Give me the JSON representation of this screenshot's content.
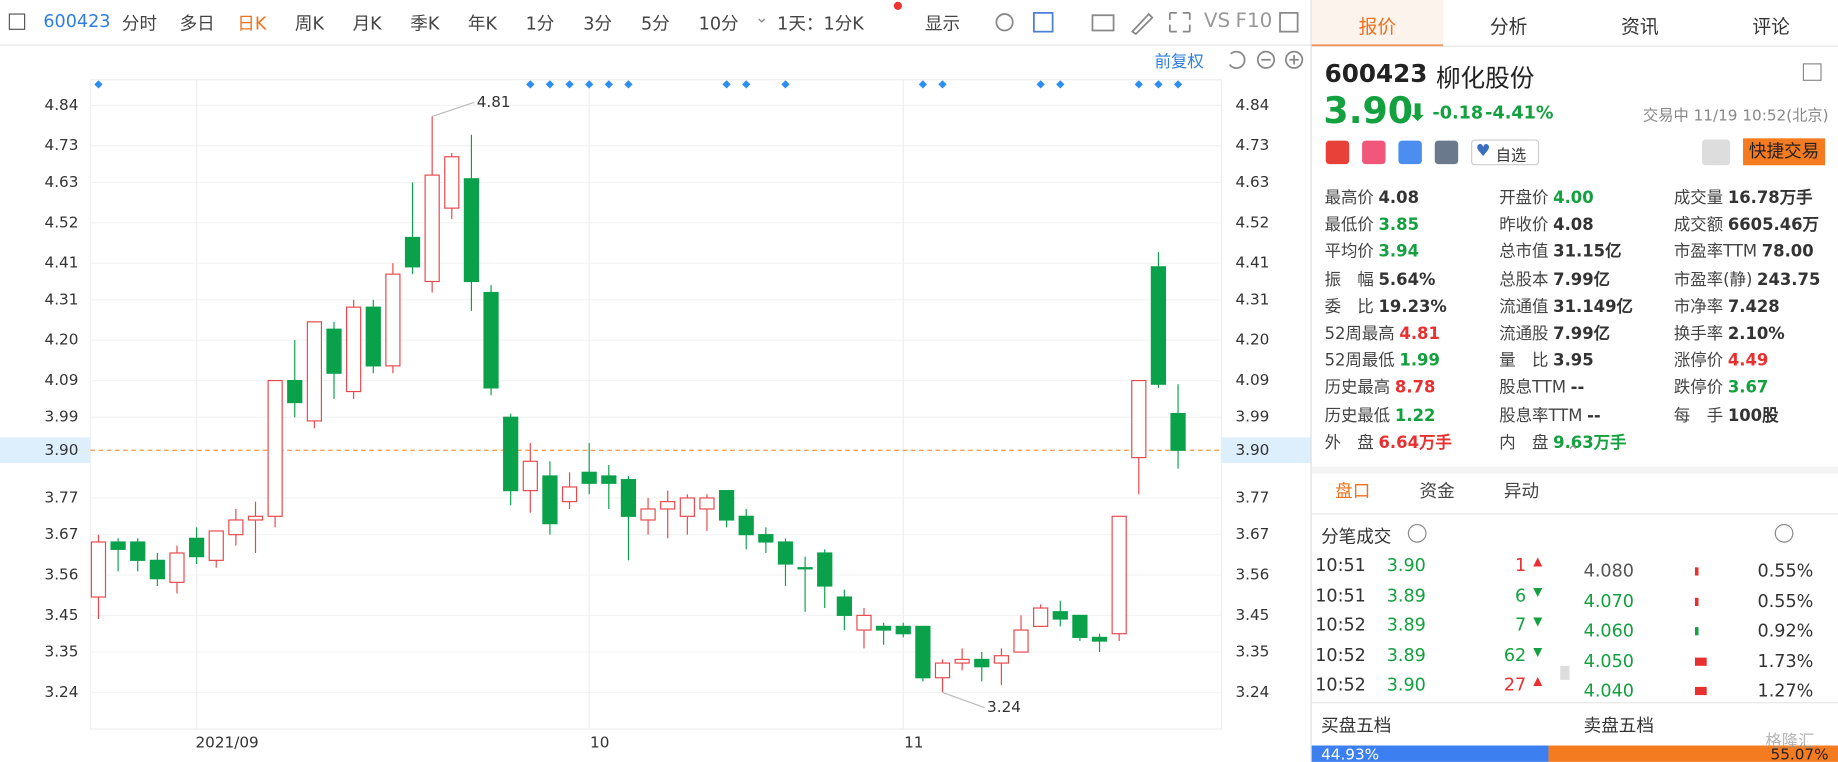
{
  "toolbar": {
    "code": "600423",
    "tabs": [
      "分时",
      "多日",
      "日K",
      "周K",
      "月K",
      "季K",
      "年K",
      "1分",
      "3分",
      "5分",
      "10分"
    ],
    "active_tab": 2,
    "period": "1天：1分K",
    "display": "显示",
    "vs": "VS",
    "f10": "F10"
  },
  "chart": {
    "type": "candlestick",
    "adjust": "前复权",
    "categories": [
      null,
      null,
      null,
      null,
      null,
      "2021/09",
      null,
      null,
      null,
      null,
      null,
      null,
      null,
      null,
      null,
      null,
      null,
      null,
      null,
      null,
      null,
      null,
      null,
      null,
      null,
      "10",
      null,
      null,
      null,
      null,
      null,
      null,
      null,
      null,
      null,
      null,
      null,
      null,
      null,
      null,
      null,
      "11",
      null,
      null,
      null,
      null,
      null,
      null,
      null,
      null,
      null,
      null,
      null,
      null,
      null,
      null
    ],
    "open": [
      3.5,
      3.65,
      3.65,
      3.6,
      3.54,
      3.66,
      3.6,
      3.67,
      3.71,
      3.72,
      4.09,
      3.98,
      4.23,
      4.06,
      4.29,
      4.13,
      4.48,
      4.36,
      4.56,
      4.64,
      4.33,
      3.99,
      3.79,
      3.83,
      3.76,
      3.84,
      3.83,
      3.82,
      3.71,
      3.74,
      3.72,
      3.74,
      3.79,
      3.72,
      3.67,
      3.65,
      3.58,
      3.62,
      3.5,
      3.41,
      3.42,
      3.42,
      3.42,
      3.28,
      3.32,
      3.33,
      3.32,
      3.35,
      3.42,
      3.46,
      3.45,
      3.39,
      3.4,
      3.88,
      4.4,
      4.0
    ],
    "high": [
      3.67,
      3.66,
      3.66,
      3.62,
      3.64,
      3.69,
      3.68,
      3.74,
      3.76,
      4.09,
      4.2,
      4.25,
      4.25,
      4.31,
      4.31,
      4.41,
      4.63,
      4.81,
      4.71,
      4.76,
      4.35,
      4.0,
      3.92,
      3.87,
      3.84,
      3.92,
      3.86,
      3.83,
      3.77,
      3.79,
      3.78,
      3.78,
      3.79,
      3.74,
      3.69,
      3.66,
      3.61,
      3.63,
      3.52,
      3.47,
      3.43,
      3.43,
      3.42,
      3.33,
      3.36,
      3.35,
      3.36,
      3.45,
      3.48,
      3.49,
      3.45,
      3.4,
      3.72,
      4.09,
      4.44,
      4.08
    ],
    "low": [
      3.44,
      3.57,
      3.57,
      3.53,
      3.51,
      3.59,
      3.58,
      3.64,
      3.62,
      3.69,
      3.99,
      3.96,
      4.04,
      4.04,
      4.11,
      4.11,
      4.38,
      4.33,
      4.53,
      4.28,
      4.05,
      3.75,
      3.73,
      3.67,
      3.74,
      3.78,
      3.74,
      3.6,
      3.67,
      3.66,
      3.67,
      3.68,
      3.69,
      3.63,
      3.62,
      3.53,
      3.46,
      3.47,
      3.41,
      3.36,
      3.37,
      3.39,
      3.27,
      3.24,
      3.3,
      3.27,
      3.26,
      3.35,
      3.42,
      3.42,
      3.38,
      3.35,
      3.38,
      3.78,
      4.07,
      3.85
    ],
    "close": [
      3.65,
      3.63,
      3.6,
      3.55,
      3.62,
      3.61,
      3.68,
      3.71,
      3.72,
      4.09,
      4.03,
      4.25,
      4.11,
      4.29,
      4.13,
      4.38,
      4.4,
      4.65,
      4.7,
      4.36,
      4.07,
      3.79,
      3.87,
      3.7,
      3.8,
      3.81,
      3.81,
      3.72,
      3.74,
      3.76,
      3.77,
      3.77,
      3.71,
      3.67,
      3.65,
      3.59,
      3.58,
      3.53,
      3.45,
      3.45,
      3.41,
      3.4,
      3.28,
      3.32,
      3.33,
      3.31,
      3.34,
      3.41,
      3.47,
      3.44,
      3.39,
      3.38,
      3.72,
      4.09,
      4.08,
      3.9
    ],
    "ylim": [
      3.14,
      4.91
    ],
    "yticks": [
      4.84,
      4.73,
      4.63,
      4.52,
      4.41,
      4.31,
      {
        "value": 4.2,
        "label": "4.20"
      },
      4.09,
      3.99,
      3.77,
      3.67,
      3.56,
      3.45,
      3.35,
      3.24
    ],
    "last_price": {
      "value": 3.9,
      "label": "3.90"
    },
    "peak_label": "4.81",
    "low_label": "3.24",
    "up_color": "#e8474a",
    "down_color": "#0aa14b",
    "grid": true
  },
  "panel": {
    "tabs": [
      "报价",
      "分析",
      "资讯",
      "评论"
    ],
    "active_tab": 0,
    "code": "600423",
    "name": "柳化股份",
    "price": "3.90",
    "change": "-0.18",
    "change_pct": "-4.41%",
    "status": "交易中 11/19 10:52(北京)",
    "watch": "自选",
    "trade": "快捷交易",
    "stats": [
      [
        {
          "label": "最高价",
          "value": "4.08"
        },
        {
          "label": "最低价",
          "value": "3.85",
          "color": "#13a03e"
        },
        {
          "label": "平均价",
          "value": "3.94",
          "color": "#13a03e"
        },
        {
          "label": "振　幅",
          "value": "5.64%"
        },
        {
          "label": "委　比",
          "value": "19.23%"
        },
        {
          "label": "52周最高",
          "value": "4.81",
          "color": "#e93030"
        },
        {
          "label": "52周最低",
          "value": "1.99",
          "color": "#13a03e"
        },
        {
          "label": "历史最高",
          "value": "8.78",
          "color": "#e93030"
        },
        {
          "label": "历史最低",
          "value": "1.22",
          "color": "#13a03e"
        },
        {
          "label": "外　盘",
          "value": "6.64万手",
          "color": "#e93030"
        }
      ],
      [
        {
          "label": "开盘价",
          "value": "4.00",
          "color": "#13a03e"
        },
        {
          "label": "昨收价",
          "value": "4.08"
        },
        {
          "label": "总市值",
          "value": "31.15亿"
        },
        {
          "label": "总股本",
          "value": "7.99亿"
        },
        {
          "label": "流通值",
          "value": "31.149亿"
        },
        {
          "label": "流通股",
          "value": "7.99亿"
        },
        {
          "label": "量　比",
          "value": "3.95"
        },
        {
          "label": "股息TTM",
          "value": "--"
        },
        {
          "label": "股息率TTM",
          "value": "--"
        },
        {
          "label": "内　盘",
          "value": "9.63万手",
          "color": "#13a03e"
        }
      ],
      [
        {
          "label": "成交量",
          "value": "16.78万手"
        },
        {
          "label": "成交额",
          "value": "6605.46万"
        },
        {
          "label": "市盈率TTM",
          "value": "78.00"
        },
        {
          "label": "市盈率(静)",
          "value": "243.75"
        },
        {
          "label": "市净率",
          "value": "7.428"
        },
        {
          "label": "换手率",
          "value": "2.10%"
        },
        {
          "label": "涨停价",
          "value": "4.49",
          "color": "#e93030"
        },
        {
          "label": "跌停价",
          "value": "3.67",
          "color": "#13a03e"
        },
        {
          "label": "每　手",
          "value": "100股"
        }
      ]
    ],
    "sub_tabs": [
      "盘口",
      "资金",
      "异动"
    ],
    "sub_active": 0,
    "ticks_title": "分笔成交",
    "trades": [
      {
        "time": "10:51",
        "price": "3.90",
        "volume": 1,
        "dir": "up"
      },
      {
        "time": "10:51",
        "price": "3.89",
        "volume": 6,
        "dir": "down"
      },
      {
        "time": "10:52",
        "price": "3.89",
        "volume": 7,
        "dir": "down"
      },
      {
        "time": "10:52",
        "price": "3.89",
        "volume": 62,
        "dir": "down"
      },
      {
        "time": "10:52",
        "price": "3.90",
        "volume": 27,
        "dir": "up"
      }
    ],
    "depth": [
      {
        "price": "4.080",
        "pct": "0.55%"
      },
      {
        "price": "4.070",
        "pct": "0.55%"
      },
      {
        "price": "4.060",
        "pct": "0.92%"
      },
      {
        "price": "4.050",
        "pct": "1.73%"
      },
      {
        "price": "4.040",
        "pct": "1.27%"
      }
    ],
    "buy_title": "买盘五档",
    "sell_title": "卖盘五档",
    "ratio": [
      {
        "value": 44.93,
        "label": "44.93%"
      },
      {
        "value": 55.07,
        "label": "55.07%"
      }
    ],
    "watermark": "格隆汇"
  }
}
